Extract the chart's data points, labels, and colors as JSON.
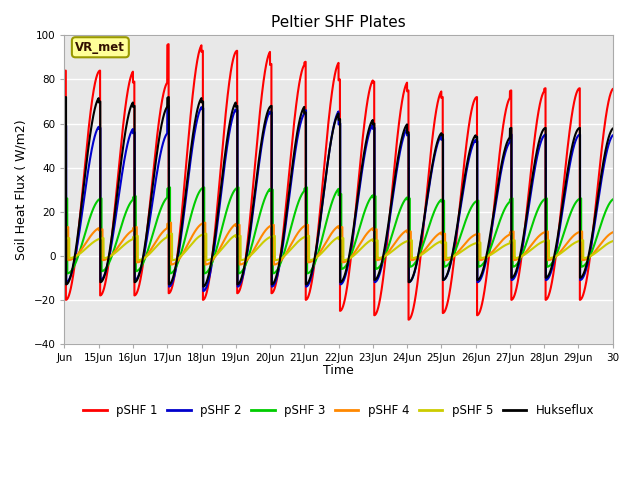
{
  "title": "Peltier SHF Plates",
  "ylabel": "Soil Heat Flux ( W/m2)",
  "xlabel": "Time",
  "ylim": [
    -40,
    100
  ],
  "series": [
    {
      "name": "pSHF 1",
      "color": "#ff0000",
      "lw": 1.5
    },
    {
      "name": "pSHF 2",
      "color": "#0000cc",
      "lw": 1.5
    },
    {
      "name": "pSHF 3",
      "color": "#00cc00",
      "lw": 1.5
    },
    {
      "name": "pSHF 4",
      "color": "#ff8800",
      "lw": 1.5
    },
    {
      "name": "pSHF 5",
      "color": "#cccc00",
      "lw": 1.5
    },
    {
      "name": "Hukseflux",
      "color": "#000000",
      "lw": 1.5
    }
  ],
  "xtick_labels": [
    "Jun",
    "15Jun",
    "16Jun",
    "17Jun",
    "18Jun",
    "19Jun",
    "20Jun",
    "21Jun",
    "22Jun",
    "23Jun",
    "24Jun",
    "25Jun",
    "26Jun",
    "27Jun",
    "28Jun",
    "29Jun",
    "30"
  ],
  "annotation_text": "VR_met",
  "annotation_bg": "#ffff99",
  "annotation_border": "#999900",
  "fig_bg": "#ffffff",
  "plot_bg": "#e8e8e8",
  "grid_color": "#ffffff",
  "peaks_1": [
    84,
    84,
    79,
    96,
    93,
    93,
    87,
    88,
    80,
    79,
    75,
    72,
    72,
    75,
    76,
    76
  ],
  "troughs_1": [
    -20,
    -18,
    -18,
    -17,
    -20,
    -17,
    -17,
    -20,
    -25,
    -27,
    -29,
    -26,
    -27,
    -20,
    -20,
    -20
  ],
  "peaks_2": [
    59,
    58,
    56,
    68,
    67,
    66,
    65,
    66,
    60,
    58,
    55,
    53,
    52,
    55,
    55,
    55
  ],
  "troughs_2": [
    -12,
    -11,
    -11,
    -14,
    -16,
    -14,
    -14,
    -14,
    -13,
    -12,
    -12,
    -11,
    -12,
    -11,
    -11,
    -11
  ],
  "peaks_3": [
    26,
    26,
    27,
    31,
    31,
    31,
    30,
    31,
    28,
    27,
    26,
    25,
    25,
    26,
    26,
    26
  ],
  "troughs_3": [
    -8,
    -7,
    -7,
    -8,
    -8,
    -8,
    -8,
    -8,
    -6,
    -6,
    -5,
    -5,
    -5,
    -5,
    -5,
    -5
  ],
  "peaks_4": [
    13,
    12,
    13,
    15,
    15,
    14,
    14,
    14,
    13,
    12,
    11,
    10,
    10,
    11,
    11,
    11
  ],
  "troughs_4": [
    -2,
    -2,
    -3,
    -4,
    -4,
    -4,
    -4,
    -3,
    -3,
    -2,
    -2,
    -2,
    -2,
    -2,
    -2,
    -2
  ],
  "peaks_5": [
    8,
    8,
    9,
    10,
    10,
    9,
    9,
    9,
    8,
    7,
    7,
    6,
    6,
    7,
    7,
    7
  ],
  "troughs_5": [
    -1,
    -1,
    -2,
    -2,
    -2,
    -2,
    -2,
    -2,
    -2,
    -1,
    -1,
    -1,
    -1,
    -1,
    -1,
    -1
  ],
  "peaks_h": [
    72,
    70,
    68,
    72,
    70,
    68,
    68,
    65,
    62,
    60,
    56,
    55,
    54,
    58,
    58,
    58
  ],
  "troughs_h": [
    -13,
    -12,
    -12,
    -13,
    -14,
    -13,
    -13,
    -13,
    -12,
    -11,
    -12,
    -11,
    -11,
    -10,
    -10,
    -10
  ]
}
